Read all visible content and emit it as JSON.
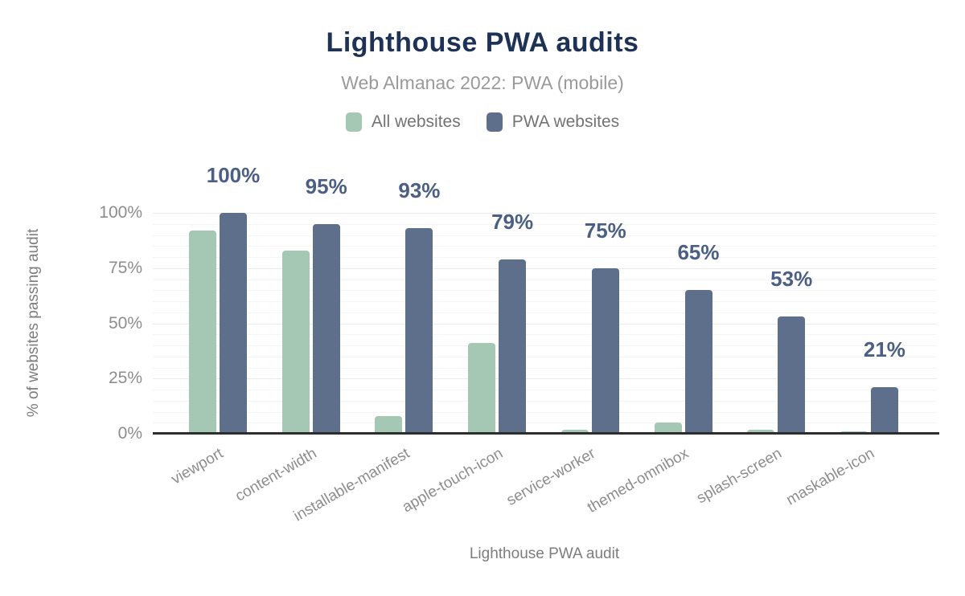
{
  "header": {
    "title": "Lighthouse PWA audits",
    "subtitle": "Web Almanac 2022: PWA (mobile)"
  },
  "legend": [
    {
      "label": "All websites",
      "color": "#a4c8b4"
    },
    {
      "label": "PWA websites",
      "color": "#5e6f8b"
    }
  ],
  "colors": {
    "title_text": "#1e3256",
    "subtitle_text": "#9a9a9a",
    "series_all_websites": "#a4c8b4",
    "series_pwa_websites": "#5e6f8b",
    "data_label_text": "#4b5f85",
    "axis_text": "#8d8d8d",
    "axis_line": "#2d2d2d",
    "grid_minor": "#f5f5f5",
    "grid_major": "#ebebeb"
  },
  "chart_data": {
    "type": "bar",
    "title": "Lighthouse PWA audits",
    "subtitle": "Web Almanac 2022: PWA (mobile)",
    "categories": [
      "viewport",
      "content-width",
      "installable-manifest",
      "apple-touch-icon",
      "service-worker",
      "themed-omnibox",
      "splash-screen",
      "maskable-icon"
    ],
    "series": [
      {
        "name": "All websites",
        "color": "#a4c8b4",
        "values": [
          92,
          83,
          8,
          41,
          2,
          5,
          2,
          1
        ]
      },
      {
        "name": "PWA websites",
        "color": "#5e6f8b",
        "values": [
          100,
          95,
          93,
          79,
          75,
          65,
          53,
          21
        ],
        "data_labels": [
          "100%",
          "95%",
          "93%",
          "79%",
          "75%",
          "65%",
          "53%",
          "21%"
        ]
      }
    ],
    "xlabel": "Lighthouse PWA audit",
    "ylabel": "% of websites passing audit",
    "yticks": [
      {
        "label": "0%",
        "value": 0
      },
      {
        "label": "25%",
        "value": 25
      },
      {
        "label": "50%",
        "value": 50
      },
      {
        "label": "75%",
        "value": 75
      },
      {
        "label": "100%",
        "value": 100
      }
    ],
    "ylim": [
      0,
      100
    ],
    "grid": "horizontal minor every 5%, major every 25%",
    "legend_position": "top"
  }
}
